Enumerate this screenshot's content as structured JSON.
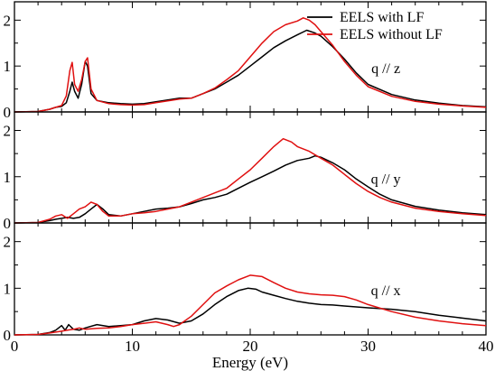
{
  "chart_data": [
    {
      "type": "line",
      "annotation": "q // z",
      "xlim": [
        0,
        40
      ],
      "ylim": [
        0,
        2.4
      ],
      "yticks": [
        "0",
        "1",
        "2"
      ],
      "legend_position": "top-right",
      "series": [
        {
          "name": "EELS with LF",
          "color": "#000000",
          "x": [
            0,
            2,
            3,
            3.5,
            4,
            4.4,
            4.7,
            4.9,
            5.1,
            5.4,
            5.7,
            6.0,
            6.2,
            6.5,
            7,
            8,
            9,
            10,
            11,
            12,
            13,
            14,
            15,
            16,
            17,
            18,
            19,
            20,
            21,
            22,
            23,
            24,
            24.8,
            25.5,
            26,
            27,
            28,
            29,
            30,
            32,
            34,
            36,
            38,
            40
          ],
          "y": [
            0,
            0.01,
            0.06,
            0.1,
            0.12,
            0.2,
            0.45,
            0.65,
            0.45,
            0.3,
            0.6,
            1.1,
            1.0,
            0.4,
            0.25,
            0.2,
            0.18,
            0.17,
            0.18,
            0.22,
            0.26,
            0.3,
            0.3,
            0.4,
            0.5,
            0.65,
            0.8,
            1.0,
            1.2,
            1.4,
            1.55,
            1.68,
            1.78,
            1.72,
            1.65,
            1.42,
            1.15,
            0.85,
            0.6,
            0.38,
            0.26,
            0.19,
            0.14,
            0.11
          ]
        },
        {
          "name": "EELS without LF",
          "color": "#e01010",
          "x": [
            0,
            2,
            3,
            3.5,
            4,
            4.4,
            4.7,
            4.9,
            5.1,
            5.4,
            5.7,
            6.0,
            6.2,
            6.5,
            7,
            8,
            9,
            10,
            11,
            12,
            13,
            14,
            15,
            16,
            17,
            18,
            19,
            20,
            21,
            22,
            23,
            24,
            24.5,
            25,
            25.5,
            26,
            27,
            28,
            29,
            30,
            32,
            34,
            36,
            38,
            40
          ],
          "y": [
            0,
            0.01,
            0.06,
            0.1,
            0.14,
            0.35,
            0.9,
            1.08,
            0.6,
            0.45,
            0.7,
            1.1,
            1.18,
            0.5,
            0.25,
            0.18,
            0.16,
            0.15,
            0.16,
            0.2,
            0.24,
            0.28,
            0.3,
            0.4,
            0.52,
            0.7,
            0.9,
            1.2,
            1.5,
            1.75,
            1.9,
            1.98,
            2.05,
            2.0,
            1.9,
            1.75,
            1.45,
            1.1,
            0.8,
            0.55,
            0.34,
            0.23,
            0.17,
            0.13,
            0.1
          ]
        }
      ]
    },
    {
      "type": "line",
      "annotation": "q // y",
      "xlim": [
        0,
        40
      ],
      "ylim": [
        0,
        2.4
      ],
      "yticks": [
        "0",
        "1",
        "2"
      ],
      "series": [
        {
          "name": "EELS with LF",
          "color": "#000000",
          "x": [
            0,
            2,
            3,
            3.5,
            4,
            4.5,
            5,
            5.5,
            6,
            6.5,
            7,
            7.5,
            8,
            9,
            10,
            11,
            12,
            13,
            14,
            15,
            16,
            17,
            18,
            19,
            20,
            21,
            22,
            23,
            24,
            25,
            25.5,
            26,
            27,
            28,
            29,
            30,
            31,
            32,
            34,
            36,
            38,
            40
          ],
          "y": [
            0,
            0.01,
            0.05,
            0.08,
            0.1,
            0.12,
            0.1,
            0.12,
            0.2,
            0.3,
            0.4,
            0.3,
            0.18,
            0.15,
            0.2,
            0.25,
            0.3,
            0.32,
            0.35,
            0.42,
            0.5,
            0.55,
            0.62,
            0.75,
            0.88,
            1.0,
            1.12,
            1.25,
            1.35,
            1.4,
            1.45,
            1.42,
            1.3,
            1.15,
            0.95,
            0.78,
            0.62,
            0.5,
            0.36,
            0.28,
            0.22,
            0.18
          ]
        },
        {
          "name": "EELS without LF",
          "color": "#e01010",
          "x": [
            0,
            2,
            3,
            3.5,
            4,
            4.5,
            5,
            5.5,
            6,
            6.5,
            7,
            7.5,
            8,
            9,
            10,
            11,
            12,
            13,
            14,
            15,
            16,
            17,
            18,
            19,
            20,
            21,
            22,
            22.8,
            23.5,
            24,
            25,
            26,
            27,
            28,
            29,
            30,
            31,
            32,
            34,
            36,
            38,
            40
          ],
          "y": [
            0,
            0.01,
            0.08,
            0.15,
            0.18,
            0.1,
            0.2,
            0.3,
            0.35,
            0.45,
            0.4,
            0.25,
            0.15,
            0.15,
            0.2,
            0.22,
            0.25,
            0.3,
            0.35,
            0.45,
            0.55,
            0.65,
            0.75,
            0.95,
            1.15,
            1.4,
            1.65,
            1.82,
            1.75,
            1.65,
            1.55,
            1.4,
            1.25,
            1.05,
            0.85,
            0.68,
            0.55,
            0.45,
            0.32,
            0.25,
            0.2,
            0.16
          ]
        }
      ]
    },
    {
      "type": "line",
      "annotation": "q // x",
      "xlim": [
        0,
        40
      ],
      "ylim": [
        0,
        2.4
      ],
      "yticks": [
        "0",
        "1",
        "2"
      ],
      "xticks": [
        "0",
        "10",
        "20",
        "30",
        "40"
      ],
      "xlabel": "Energy (eV)",
      "series": [
        {
          "name": "EELS with LF",
          "color": "#000000",
          "x": [
            0,
            2,
            3,
            3.5,
            4,
            4.3,
            4.6,
            5,
            5.5,
            6,
            7,
            8,
            9,
            10,
            11,
            12,
            13,
            14,
            15,
            16,
            17,
            18,
            19,
            19.8,
            20.5,
            21,
            22,
            23,
            24,
            25,
            26,
            27,
            28,
            29,
            30,
            32,
            34,
            36,
            38,
            40
          ],
          "y": [
            0,
            0.01,
            0.05,
            0.1,
            0.2,
            0.1,
            0.22,
            0.12,
            0.1,
            0.15,
            0.22,
            0.18,
            0.2,
            0.22,
            0.3,
            0.35,
            0.32,
            0.25,
            0.3,
            0.45,
            0.65,
            0.82,
            0.95,
            1.0,
            0.98,
            0.92,
            0.85,
            0.78,
            0.72,
            0.68,
            0.65,
            0.64,
            0.62,
            0.6,
            0.58,
            0.55,
            0.5,
            0.42,
            0.36,
            0.3
          ]
        },
        {
          "name": "EELS without LF",
          "color": "#e01010",
          "x": [
            0,
            2,
            3,
            3.5,
            4,
            4.5,
            5,
            5.5,
            6,
            7,
            8,
            9,
            10,
            11,
            12,
            13,
            13.5,
            14,
            15,
            16,
            17,
            18,
            19,
            20,
            21,
            22,
            23,
            24,
            25,
            26,
            27,
            28,
            29,
            30,
            32,
            34,
            36,
            38,
            40
          ],
          "y": [
            0,
            0.01,
            0.04,
            0.06,
            0.08,
            0.1,
            0.12,
            0.15,
            0.12,
            0.14,
            0.15,
            0.18,
            0.22,
            0.25,
            0.28,
            0.22,
            0.18,
            0.22,
            0.4,
            0.65,
            0.9,
            1.05,
            1.18,
            1.28,
            1.25,
            1.12,
            1.0,
            0.92,
            0.88,
            0.86,
            0.85,
            0.82,
            0.75,
            0.65,
            0.5,
            0.38,
            0.3,
            0.24,
            0.2
          ]
        }
      ]
    }
  ]
}
